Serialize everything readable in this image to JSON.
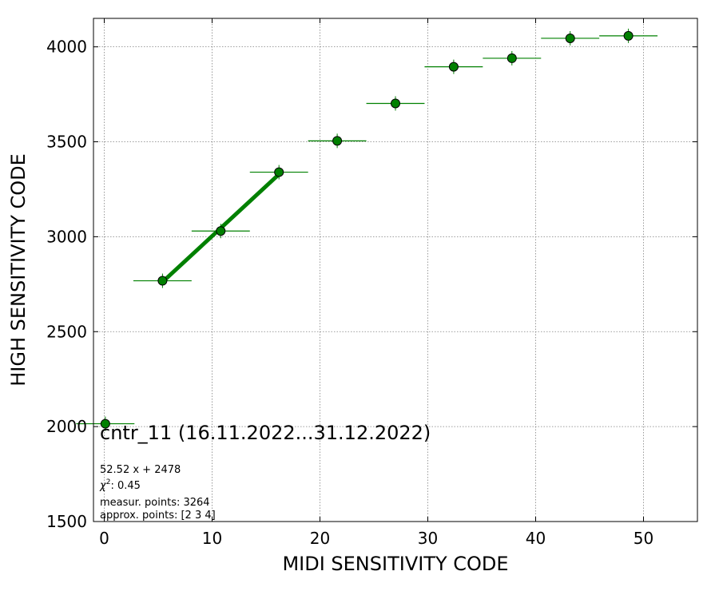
{
  "chart_data": {
    "type": "scatter",
    "xlabel": "MIDI SENSITIVITY CODE",
    "ylabel": "HIGH SENSITIVITY CODE",
    "xlim": [
      -1,
      55
    ],
    "ylim": [
      1500,
      4150
    ],
    "xticks": [
      "0",
      "10",
      "20",
      "30",
      "40",
      "50"
    ],
    "yticks": [
      "1500",
      "2000",
      "2500",
      "3000",
      "3500",
      "4000"
    ],
    "grid": true,
    "colors": {
      "points": "#008000",
      "fit_line": "#008000",
      "marker_edge": "#000000"
    },
    "points": [
      {
        "x": 0.1,
        "y": 2015,
        "xerr": 2.7
      },
      {
        "x": 5.4,
        "y": 2768,
        "xerr": 2.7
      },
      {
        "x": 10.8,
        "y": 3030,
        "xerr": 2.7
      },
      {
        "x": 16.2,
        "y": 3340,
        "xerr": 2.7
      },
      {
        "x": 21.6,
        "y": 3505,
        "xerr": 2.7
      },
      {
        "x": 27.0,
        "y": 3702,
        "xerr": 2.7
      },
      {
        "x": 32.4,
        "y": 3895,
        "xerr": 2.7
      },
      {
        "x": 37.8,
        "y": 3940,
        "xerr": 2.7
      },
      {
        "x": 43.2,
        "y": 4045,
        "xerr": 2.7
      },
      {
        "x": 48.6,
        "y": 4058,
        "xerr": 2.7
      }
    ],
    "fit": {
      "slope": 52.52,
      "intercept": 2478,
      "x_range": [
        5.4,
        16.2
      ]
    },
    "annotations": {
      "title": "cntr_11 (16.11.2022...31.12.2022)",
      "equation": "52.52 x + 2478",
      "chi2_symbol": "χ",
      "chi2_value": ": 0.45",
      "measur_points": "measur. points: 3264",
      "approx_points": "approx. points: [2 3 4]"
    }
  }
}
